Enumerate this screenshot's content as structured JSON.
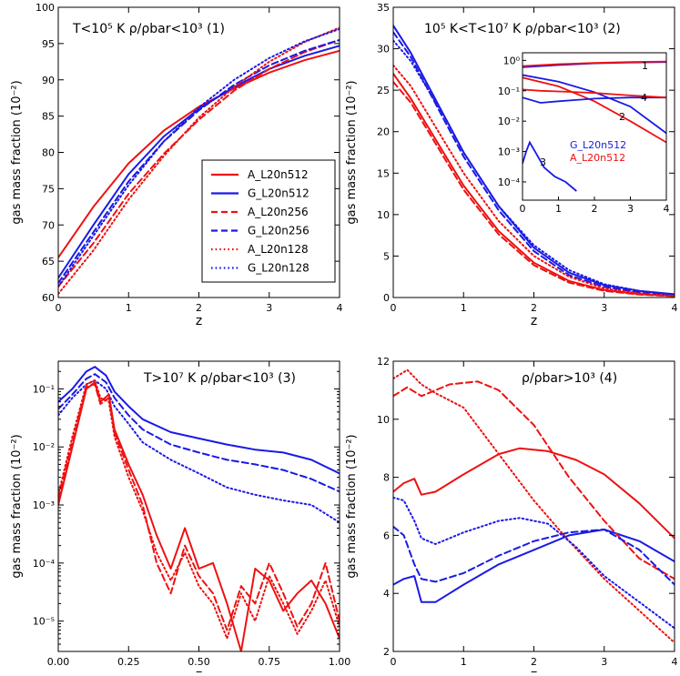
{
  "colors": {
    "A": "#ee1111",
    "G": "#1a1ae6"
  },
  "legend": [
    {
      "label": "A_L20n512",
      "sim": "A",
      "style": "solid"
    },
    {
      "label": "G_L20n512",
      "sim": "G",
      "style": "solid"
    },
    {
      "label": "A_L20n256",
      "sim": "A",
      "style": "dashed"
    },
    {
      "label": "G_L20n256",
      "sim": "G",
      "style": "dashed"
    },
    {
      "label": "A_L20n128",
      "sim": "A",
      "style": "dotted"
    },
    {
      "label": "G_L20n128",
      "sim": "G",
      "style": "dotted"
    }
  ],
  "inset": {
    "labels": [
      "1",
      "2",
      "3",
      "4"
    ],
    "legend": [
      {
        "label": "G_L20n512",
        "sim": "G"
      },
      {
        "label": "A_L20n512",
        "sim": "A"
      }
    ],
    "xticks": [
      "0",
      "1",
      "2",
      "3",
      "4"
    ],
    "yticks": [
      "10⁰",
      "10⁻¹",
      "10⁻²",
      "10⁻³",
      "10⁻⁴"
    ]
  },
  "chart_data": [
    {
      "type": "line",
      "title": "T<10⁵ K  ρ/ρbar<10³ (1)",
      "xlabel": "z",
      "ylabel": "gas mass fraction (10⁻²)",
      "xlim": [
        0,
        4
      ],
      "ylim": [
        60,
        100
      ],
      "yscale": "linear",
      "xticks": [
        "0",
        "1",
        "2",
        "3",
        "4"
      ],
      "yticks": [
        "60",
        "65",
        "70",
        "75",
        "80",
        "85",
        "90",
        "95",
        "100"
      ],
      "legend_position": "lower-right",
      "series": [
        {
          "name": "A_L20n512",
          "x": [
            0,
            0.5,
            1,
            1.5,
            2,
            2.5,
            3,
            3.5,
            4
          ],
          "y": [
            65.5,
            72.5,
            78.5,
            83,
            86.3,
            88.8,
            91,
            92.7,
            94
          ]
        },
        {
          "name": "G_L20n512",
          "x": [
            0,
            0.5,
            1,
            1.5,
            2,
            2.5,
            3,
            3.5,
            4
          ],
          "y": [
            62.7,
            70,
            77,
            82.2,
            86,
            89,
            91.5,
            93.3,
            94.7
          ]
        },
        {
          "name": "A_L20n256",
          "x": [
            0,
            0.5,
            1,
            1.5,
            2,
            2.5,
            3,
            3.5,
            4
          ],
          "y": [
            61.5,
            67.5,
            74.3,
            79.8,
            84.5,
            88.5,
            91.5,
            93.8,
            95.5
          ]
        },
        {
          "name": "G_L20n256",
          "x": [
            0,
            0.5,
            1,
            1.5,
            2,
            2.5,
            3,
            3.5,
            4
          ],
          "y": [
            62,
            69,
            76,
            81.5,
            85.8,
            89.3,
            92,
            94,
            95.5
          ]
        },
        {
          "name": "A_L20n128",
          "x": [
            0,
            0.5,
            1,
            1.5,
            2,
            2.5,
            3,
            3.5,
            4
          ],
          "y": [
            60.5,
            66.5,
            73.5,
            79.5,
            84.8,
            89,
            92.5,
            95.2,
            97.2
          ]
        },
        {
          "name": "G_L20n128",
          "x": [
            0,
            0.5,
            1,
            1.5,
            2,
            2.5,
            3,
            3.5,
            4
          ],
          "y": [
            61.5,
            68.5,
            75.5,
            81.5,
            86.2,
            90,
            93,
            95.3,
            97
          ]
        }
      ]
    },
    {
      "type": "line",
      "title": "10⁵ K<T<10⁷ K  ρ/ρbar<10³ (2)",
      "xlabel": "z",
      "ylabel": "gas mass fraction (10⁻²)",
      "xlim": [
        0,
        4
      ],
      "ylim": [
        0,
        35
      ],
      "yscale": "linear",
      "xticks": [
        "0",
        "1",
        "2",
        "3",
        "4"
      ],
      "yticks": [
        "0",
        "5",
        "10",
        "15",
        "20",
        "25",
        "30",
        "35"
      ],
      "series": [
        {
          "name": "A_L20n512",
          "x": [
            0,
            0.25,
            0.5,
            0.75,
            1,
            1.5,
            2,
            2.5,
            3,
            3.5,
            4
          ],
          "y": [
            27,
            24,
            20.5,
            17,
            13.5,
            8,
            4.2,
            2,
            0.9,
            0.4,
            0.2
          ]
        },
        {
          "name": "G_L20n512",
          "x": [
            0,
            0.25,
            0.5,
            0.75,
            1,
            1.5,
            2,
            2.5,
            3,
            3.5,
            4
          ],
          "y": [
            32.8,
            29.5,
            25.5,
            21.5,
            17.5,
            11,
            6,
            3,
            1.5,
            0.8,
            0.4
          ]
        },
        {
          "name": "A_L20n256",
          "x": [
            0,
            0.25,
            0.5,
            0.75,
            1,
            1.5,
            2,
            2.5,
            3,
            3.5,
            4
          ],
          "y": [
            26,
            23.5,
            20,
            16.5,
            13,
            7.6,
            3.9,
            1.8,
            0.8,
            0.35,
            0.15
          ]
        },
        {
          "name": "G_L20n256",
          "x": [
            0,
            0.25,
            0.5,
            0.75,
            1,
            1.5,
            2,
            2.5,
            3,
            3.5,
            4
          ],
          "y": [
            32,
            29,
            25,
            21,
            17,
            10.5,
            5.6,
            2.7,
            1.3,
            0.6,
            0.3
          ]
        },
        {
          "name": "A_L20n128",
          "x": [
            0,
            0.25,
            0.5,
            0.75,
            1,
            1.5,
            2,
            2.5,
            3,
            3.5,
            4
          ],
          "y": [
            28,
            25.5,
            22,
            18.5,
            15,
            9.2,
            5,
            2.5,
            1.1,
            0.5,
            0.2
          ]
        },
        {
          "name": "G_L20n128",
          "x": [
            0,
            0.25,
            0.5,
            0.75,
            1,
            1.5,
            2,
            2.5,
            3,
            3.5,
            4
          ],
          "y": [
            31,
            28.5,
            25,
            21.5,
            17.5,
            11,
            6.3,
            3.3,
            1.6,
            0.8,
            0.35
          ]
        }
      ],
      "inset_series": [
        {
          "name": "G phase 1",
          "x": [
            0,
            1,
            2,
            3,
            4
          ],
          "y": [
            0.6,
            0.7,
            0.8,
            0.85,
            0.88
          ]
        },
        {
          "name": "A phase 1",
          "x": [
            0,
            1,
            2,
            3,
            4
          ],
          "y": [
            0.65,
            0.75,
            0.82,
            0.88,
            0.92
          ]
        },
        {
          "name": "G phase 2",
          "x": [
            0,
            1,
            2,
            3,
            4
          ],
          "y": [
            0.33,
            0.2,
            0.09,
            0.03,
            0.004
          ]
        },
        {
          "name": "A phase 2",
          "x": [
            0,
            1,
            2,
            3,
            4
          ],
          "y": [
            0.27,
            0.14,
            0.045,
            0.01,
            0.002
          ]
        },
        {
          "name": "G phase 4",
          "x": [
            0,
            0.5,
            1,
            2,
            3,
            4
          ],
          "y": [
            0.06,
            0.04,
            0.045,
            0.055,
            0.06,
            0.06
          ]
        },
        {
          "name": "A phase 4",
          "x": [
            0,
            0.5,
            1,
            2,
            3,
            4
          ],
          "y": [
            0.11,
            0.1,
            0.095,
            0.085,
            0.07,
            0.06
          ]
        },
        {
          "name": "G phase 3",
          "x": [
            0,
            0.1,
            0.2,
            0.35,
            0.6,
            0.9,
            1.2,
            1.5
          ],
          "y": [
            0.0004,
            0.001,
            0.002,
            0.001,
            0.0003,
            0.00015,
            0.0001,
            5e-05
          ]
        }
      ]
    },
    {
      "type": "line",
      "title": "T>10⁷ K  ρ/ρbar<10³ (3)",
      "xlabel": "z",
      "ylabel": "gas mass fraction (10⁻²)",
      "xlim": [
        0,
        1
      ],
      "ylim": [
        3e-06,
        0.3
      ],
      "yscale": "log",
      "xticks": [
        "0.00",
        "0.25",
        "0.50",
        "0.75",
        "1.00"
      ],
      "yticks": [
        "10⁻⁵",
        "10⁻⁴",
        "10⁻³",
        "10⁻²",
        "10⁻¹"
      ],
      "series": [
        {
          "name": "G_L20n512",
          "x": [
            0,
            0.05,
            0.1,
            0.13,
            0.17,
            0.2,
            0.25,
            0.3,
            0.4,
            0.5,
            0.6,
            0.7,
            0.8,
            0.9,
            1.0
          ],
          "y": [
            0.06,
            0.1,
            0.2,
            0.24,
            0.17,
            0.09,
            0.05,
            0.03,
            0.018,
            0.014,
            0.011,
            0.009,
            0.008,
            0.006,
            0.0035
          ]
        },
        {
          "name": "G_L20n256",
          "x": [
            0,
            0.05,
            0.1,
            0.13,
            0.17,
            0.2,
            0.25,
            0.3,
            0.4,
            0.5,
            0.6,
            0.7,
            0.8,
            0.9,
            1.0
          ],
          "y": [
            0.045,
            0.08,
            0.15,
            0.18,
            0.13,
            0.07,
            0.035,
            0.02,
            0.011,
            0.008,
            0.006,
            0.005,
            0.004,
            0.0028,
            0.0017
          ]
        },
        {
          "name": "G_L20n128",
          "x": [
            0,
            0.05,
            0.1,
            0.13,
            0.17,
            0.2,
            0.25,
            0.3,
            0.4,
            0.5,
            0.6,
            0.7,
            0.8,
            0.9,
            1.0
          ],
          "y": [
            0.035,
            0.07,
            0.12,
            0.14,
            0.1,
            0.05,
            0.025,
            0.012,
            0.006,
            0.0035,
            0.002,
            0.0015,
            0.0012,
            0.001,
            0.0005
          ]
        },
        {
          "name": "A_L20n512",
          "x": [
            0,
            0.05,
            0.1,
            0.13,
            0.15,
            0.18,
            0.2,
            0.25,
            0.3,
            0.35,
            0.4,
            0.45,
            0.5,
            0.55,
            0.6,
            0.65,
            0.7,
            0.75,
            0.8,
            0.85,
            0.9,
            0.95,
            1.0
          ],
          "y": [
            0.001,
            0.01,
            0.1,
            0.13,
            0.06,
            0.08,
            0.02,
            0.005,
            0.0015,
            0.0003,
            8e-05,
            0.0004,
            8e-05,
            0.0001,
            2e-05,
            3e-06,
            8e-05,
            5e-05,
            1.5e-05,
            3e-05,
            5e-05,
            2e-05,
            5e-06
          ]
        },
        {
          "name": "A_L20n256",
          "x": [
            0,
            0.05,
            0.1,
            0.13,
            0.15,
            0.18,
            0.2,
            0.25,
            0.3,
            0.35,
            0.4,
            0.45,
            0.5,
            0.55,
            0.6,
            0.65,
            0.7,
            0.75,
            0.8,
            0.85,
            0.9,
            0.95,
            1.0
          ],
          "y": [
            0.0013,
            0.012,
            0.11,
            0.12,
            0.055,
            0.07,
            0.018,
            0.004,
            0.001,
            0.0001,
            3e-05,
            0.0002,
            6e-05,
            3e-05,
            7e-06,
            4e-05,
            2e-05,
            0.0001,
            3e-05,
            8e-06,
            2e-05,
            0.0001,
            1e-05
          ]
        },
        {
          "name": "A_L20n128",
          "x": [
            0,
            0.05,
            0.1,
            0.13,
            0.15,
            0.18,
            0.2,
            0.25,
            0.3,
            0.35,
            0.4,
            0.45,
            0.5,
            0.55,
            0.6,
            0.65,
            0.7,
            0.75,
            0.8,
            0.85,
            0.9,
            0.95,
            1.0
          ],
          "y": [
            0.0015,
            0.015,
            0.12,
            0.14,
            0.07,
            0.06,
            0.015,
            0.003,
            0.0008,
            0.00015,
            5e-05,
            0.00015,
            4e-05,
            2e-05,
            5e-06,
            3e-05,
            1e-05,
            6e-05,
            2e-05,
            6e-06,
            1.5e-05,
            5e-05,
            8e-06
          ]
        }
      ]
    },
    {
      "type": "line",
      "title": "ρ/ρbar>10³ (4)",
      "xlabel": "z",
      "ylabel": "gas mass fraction (10⁻²)",
      "xlim": [
        0,
        4
      ],
      "ylim": [
        2,
        12
      ],
      "yscale": "linear",
      "xticks": [
        "0",
        "1",
        "2",
        "3",
        "4"
      ],
      "yticks": [
        "2",
        "4",
        "6",
        "8",
        "10",
        "12"
      ],
      "series": [
        {
          "name": "A_L20n512",
          "x": [
            0,
            0.15,
            0.3,
            0.4,
            0.6,
            1,
            1.5,
            1.8,
            2.2,
            2.6,
            3,
            3.5,
            4
          ],
          "y": [
            7.5,
            7.8,
            7.95,
            7.4,
            7.5,
            8.1,
            8.8,
            9.0,
            8.9,
            8.6,
            8.1,
            7.1,
            5.9
          ]
        },
        {
          "name": "G_L20n512",
          "x": [
            0,
            0.15,
            0.3,
            0.4,
            0.6,
            1,
            1.5,
            2,
            2.5,
            3,
            3.5,
            4
          ],
          "y": [
            4.3,
            4.5,
            4.6,
            3.7,
            3.7,
            4.3,
            5.0,
            5.5,
            6.0,
            6.2,
            5.8,
            5.1
          ]
        },
        {
          "name": "A_L20n256",
          "x": [
            0,
            0.2,
            0.4,
            0.6,
            0.8,
            1.2,
            1.5,
            2,
            2.5,
            3,
            3.5,
            4
          ],
          "y": [
            10.8,
            11.1,
            10.8,
            11.0,
            11.2,
            11.3,
            11.0,
            9.8,
            8.0,
            6.5,
            5.2,
            4.5
          ]
        },
        {
          "name": "G_L20n256",
          "x": [
            0,
            0.15,
            0.3,
            0.4,
            0.6,
            1,
            1.5,
            2,
            2.5,
            3,
            3.5,
            4
          ],
          "y": [
            6.3,
            6.0,
            5.0,
            4.5,
            4.4,
            4.7,
            5.3,
            5.8,
            6.1,
            6.2,
            5.5,
            4.3
          ]
        },
        {
          "name": "A_L20n128",
          "x": [
            0,
            0.2,
            0.4,
            0.6,
            1,
            1.5,
            2,
            2.5,
            3,
            3.5,
            4
          ],
          "y": [
            11.4,
            11.7,
            11.2,
            10.9,
            10.4,
            8.8,
            7.2,
            5.8,
            4.5,
            3.4,
            2.3
          ]
        },
        {
          "name": "G_L20n128",
          "x": [
            0,
            0.15,
            0.3,
            0.4,
            0.6,
            1,
            1.5,
            1.8,
            2.2,
            2.6,
            3,
            3.5,
            4
          ],
          "y": [
            7.3,
            7.2,
            6.5,
            5.9,
            5.7,
            6.1,
            6.5,
            6.6,
            6.4,
            5.6,
            4.6,
            3.7,
            2.8
          ]
        }
      ]
    }
  ]
}
